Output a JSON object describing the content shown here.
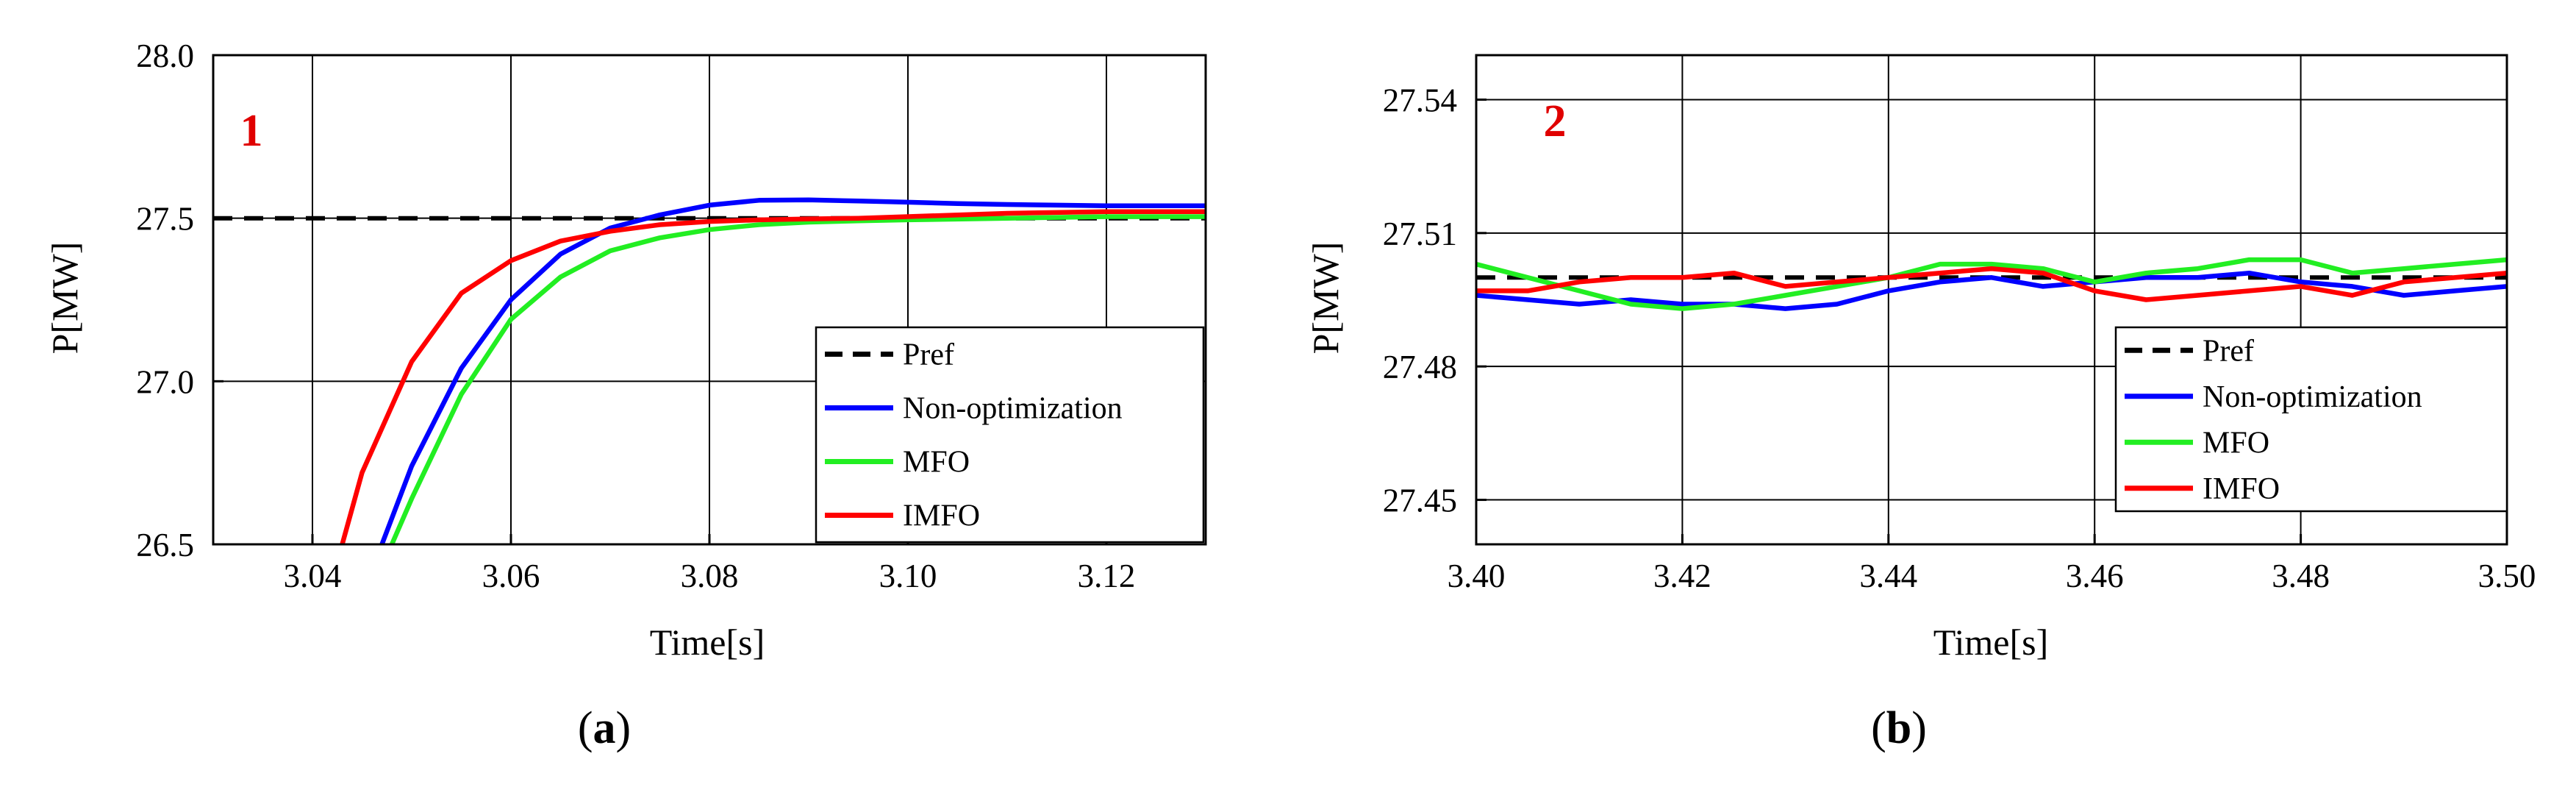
{
  "chart_data": [
    {
      "panel": "(a)",
      "panel_letter": "a",
      "marker": "1",
      "type": "line",
      "xlabel": "Time[s]",
      "ylabel": "P[MW]",
      "xlim": [
        3.03,
        3.13
      ],
      "ylim": [
        26.5,
        28.0
      ],
      "xticks": [
        "3.04",
        "3.06",
        "3.08",
        "3.10",
        "3.12"
      ],
      "yticks": [
        "26.5",
        "27.0",
        "27.5",
        "28.0"
      ],
      "grid": true,
      "legend_position": "bottom-right",
      "series": [
        {
          "name": "Pref",
          "color": "#000000",
          "dash": true,
          "x": [
            3.03,
            3.13
          ],
          "y": [
            27.5,
            27.5
          ]
        },
        {
          "name": "Non-optimization",
          "color": "#0000ff",
          "dash": false,
          "x": [
            3.047,
            3.05,
            3.055,
            3.06,
            3.065,
            3.07,
            3.075,
            3.08,
            3.085,
            3.09,
            3.095,
            3.1,
            3.105,
            3.11,
            3.115,
            3.12,
            3.13
          ],
          "y": [
            26.5,
            26.74,
            27.04,
            27.25,
            27.39,
            27.47,
            27.51,
            27.54,
            27.555,
            27.556,
            27.553,
            27.549,
            27.545,
            27.542,
            27.54,
            27.538,
            27.538
          ]
        },
        {
          "name": "MFO",
          "color": "#22ee22",
          "dash": false,
          "x": [
            3.048,
            3.05,
            3.055,
            3.06,
            3.065,
            3.07,
            3.075,
            3.08,
            3.085,
            3.09,
            3.095,
            3.1,
            3.11,
            3.12,
            3.13
          ],
          "y": [
            26.5,
            26.64,
            26.96,
            27.19,
            27.32,
            27.4,
            27.44,
            27.465,
            27.48,
            27.488,
            27.492,
            27.495,
            27.5,
            27.505,
            27.505
          ]
        },
        {
          "name": "IMFO",
          "color": "#ff0000",
          "dash": false,
          "x": [
            3.043,
            3.045,
            3.05,
            3.055,
            3.06,
            3.065,
            3.07,
            3.075,
            3.08,
            3.085,
            3.09,
            3.095,
            3.1,
            3.11,
            3.12,
            3.13
          ],
          "y": [
            26.5,
            26.72,
            27.06,
            27.27,
            27.37,
            27.43,
            27.46,
            27.48,
            27.49,
            27.495,
            27.498,
            27.5,
            27.505,
            27.515,
            27.52,
            27.52
          ]
        }
      ]
    },
    {
      "panel": "(b)",
      "panel_letter": "b",
      "marker": "2",
      "type": "line",
      "xlabel": "Time[s]",
      "ylabel": "P[MW]",
      "xlim": [
        3.4,
        3.5
      ],
      "ylim": [
        27.44,
        27.55
      ],
      "xticks": [
        "3.40",
        "3.42",
        "3.44",
        "3.46",
        "3.48",
        "3.50"
      ],
      "yticks": [
        "27.45",
        "27.48",
        "27.51",
        "27.54"
      ],
      "grid": true,
      "legend_position": "bottom-right",
      "series": [
        {
          "name": "Pref",
          "color": "#000000",
          "dash": true,
          "x": [
            3.4,
            3.5
          ],
          "y": [
            27.5,
            27.5
          ]
        },
        {
          "name": "Non-optimization",
          "color": "#0000ff",
          "dash": false,
          "x": [
            3.4,
            3.405,
            3.41,
            3.415,
            3.42,
            3.425,
            3.43,
            3.435,
            3.44,
            3.445,
            3.45,
            3.455,
            3.46,
            3.465,
            3.47,
            3.475,
            3.48,
            3.485,
            3.49,
            3.495,
            3.5
          ],
          "y": [
            27.496,
            27.495,
            27.494,
            27.495,
            27.494,
            27.494,
            27.493,
            27.494,
            27.497,
            27.499,
            27.5,
            27.498,
            27.499,
            27.5,
            27.5,
            27.501,
            27.499,
            27.498,
            27.496,
            27.497,
            27.498
          ]
        },
        {
          "name": "MFO",
          "color": "#22ee22",
          "dash": false,
          "x": [
            3.4,
            3.405,
            3.41,
            3.415,
            3.42,
            3.425,
            3.43,
            3.435,
            3.44,
            3.445,
            3.45,
            3.455,
            3.46,
            3.465,
            3.47,
            3.475,
            3.48,
            3.485,
            3.49,
            3.495,
            3.5
          ],
          "y": [
            27.503,
            27.5,
            27.497,
            27.494,
            27.493,
            27.494,
            27.496,
            27.498,
            27.5,
            27.503,
            27.503,
            27.502,
            27.499,
            27.501,
            27.502,
            27.504,
            27.504,
            27.501,
            27.502,
            27.503,
            27.504
          ]
        },
        {
          "name": "IMFO",
          "color": "#ff0000",
          "dash": false,
          "x": [
            3.4,
            3.405,
            3.41,
            3.415,
            3.42,
            3.425,
            3.43,
            3.435,
            3.44,
            3.445,
            3.45,
            3.455,
            3.46,
            3.465,
            3.47,
            3.475,
            3.48,
            3.485,
            3.49,
            3.495,
            3.5
          ],
          "y": [
            27.497,
            27.497,
            27.499,
            27.5,
            27.5,
            27.501,
            27.498,
            27.499,
            27.5,
            27.501,
            27.502,
            27.501,
            27.497,
            27.495,
            27.496,
            27.497,
            27.498,
            27.496,
            27.499,
            27.5,
            27.501
          ]
        }
      ]
    }
  ]
}
